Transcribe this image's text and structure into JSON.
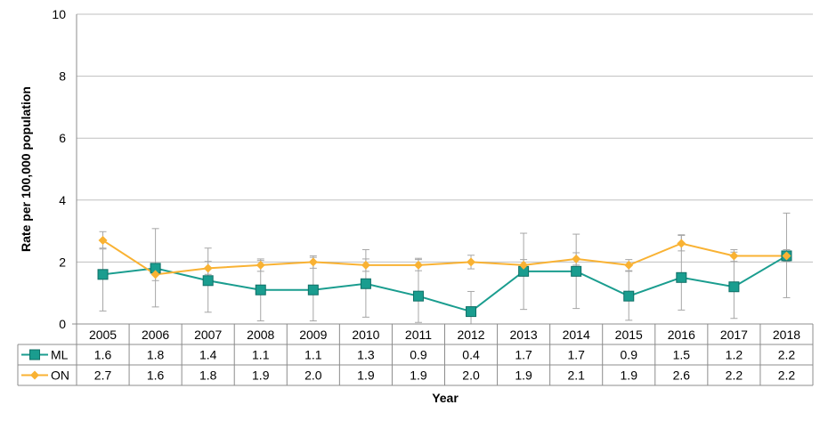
{
  "chart_data": {
    "type": "line",
    "title": "",
    "xlabel": "Year",
    "ylabel": "Rate per 100,000 population",
    "ylim": [
      0,
      10
    ],
    "yticks": [
      0,
      2,
      4,
      6,
      8,
      10
    ],
    "grid": true,
    "legend": "data-table",
    "categories": [
      "2005",
      "2006",
      "2007",
      "2008",
      "2009",
      "2010",
      "2011",
      "2012",
      "2013",
      "2014",
      "2015",
      "2016",
      "2017",
      "2018"
    ],
    "series": [
      {
        "name": "ML",
        "color": "#1a9d8f",
        "marker": "square",
        "values": [
          1.6,
          1.8,
          1.4,
          1.1,
          1.1,
          1.3,
          0.9,
          0.4,
          1.7,
          1.7,
          0.9,
          1.5,
          1.2,
          2.2
        ],
        "labels": [
          "1.6",
          "1.8",
          "1.4",
          "1.1",
          "1.1",
          "1.3",
          "0.9",
          "0.4",
          "1.7",
          "1.7",
          "0.9",
          "1.5",
          "1.2",
          "2.2"
        ],
        "ci_low": [
          0.42,
          0.55,
          0.38,
          0.1,
          0.1,
          0.22,
          0.05,
          0.0,
          0.47,
          0.5,
          0.12,
          0.45,
          0.18,
          0.85
        ],
        "ci_high": [
          2.42,
          3.08,
          2.45,
          2.05,
          2.15,
          2.4,
          2.12,
          1.05,
          2.93,
          2.9,
          1.7,
          2.88,
          2.32,
          3.58
        ]
      },
      {
        "name": "ON",
        "color": "#f9b233",
        "marker": "diamond",
        "values": [
          2.7,
          1.6,
          1.8,
          1.9,
          2.0,
          1.9,
          1.9,
          2.0,
          1.9,
          2.1,
          1.9,
          2.6,
          2.2,
          2.2
        ],
        "labels": [
          "2.7",
          "1.6",
          "1.8",
          "1.9",
          "2.0",
          "1.9",
          "1.9",
          "2.0",
          "1.9",
          "2.1",
          "1.9",
          "2.6",
          "2.2",
          "2.2"
        ],
        "ci_low": [
          2.45,
          1.4,
          1.6,
          1.7,
          1.8,
          1.7,
          1.72,
          1.78,
          1.72,
          1.9,
          1.72,
          2.36,
          2.02,
          2.02
        ],
        "ci_high": [
          2.98,
          1.82,
          2.02,
          2.1,
          2.2,
          2.1,
          2.08,
          2.22,
          2.08,
          2.3,
          2.08,
          2.86,
          2.4,
          2.4
        ]
      }
    ]
  }
}
